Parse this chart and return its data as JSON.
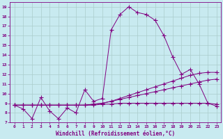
{
  "title": "",
  "xlabel": "Windchill (Refroidissement éolien,°C)",
  "ylabel": "",
  "bg_color": "#c8eaf0",
  "line_color": "#800080",
  "grid_color": "#b8d8e0",
  "xlim": [
    -0.5,
    23.5
  ],
  "ylim": [
    7,
    19.5
  ],
  "xticks": [
    0,
    1,
    2,
    3,
    4,
    5,
    6,
    7,
    8,
    9,
    10,
    11,
    12,
    13,
    14,
    15,
    16,
    17,
    18,
    19,
    20,
    21,
    22,
    23
  ],
  "yticks": [
    7,
    8,
    9,
    10,
    11,
    12,
    13,
    14,
    15,
    16,
    17,
    18,
    19
  ],
  "series": [
    [
      8.8,
      8.4,
      7.4,
      9.6,
      8.2,
      7.4,
      8.5,
      8.0,
      10.4,
      9.2,
      9.5,
      16.6,
      18.2,
      19.0,
      18.4,
      18.2,
      17.6,
      16.0,
      13.8,
      12.0,
      12.5,
      11.0,
      9.0,
      8.7
    ],
    [
      8.8,
      8.8,
      8.8,
      8.8,
      8.8,
      8.8,
      8.8,
      8.8,
      8.8,
      8.9,
      9.0,
      9.2,
      9.5,
      9.8,
      10.1,
      10.4,
      10.7,
      11.0,
      11.3,
      11.6,
      11.9,
      12.1,
      12.2,
      12.2
    ],
    [
      8.8,
      8.8,
      8.8,
      8.8,
      8.8,
      8.8,
      8.8,
      8.8,
      8.8,
      8.9,
      9.0,
      9.2,
      9.4,
      9.6,
      9.8,
      10.0,
      10.2,
      10.4,
      10.6,
      10.8,
      11.0,
      11.2,
      11.4,
      11.5
    ],
    [
      8.8,
      8.8,
      8.8,
      8.8,
      8.8,
      8.8,
      8.8,
      8.8,
      8.8,
      8.8,
      8.9,
      8.9,
      9.0,
      9.0,
      9.0,
      9.0,
      9.0,
      9.0,
      9.0,
      9.0,
      9.0,
      9.0,
      9.0,
      8.9
    ]
  ]
}
